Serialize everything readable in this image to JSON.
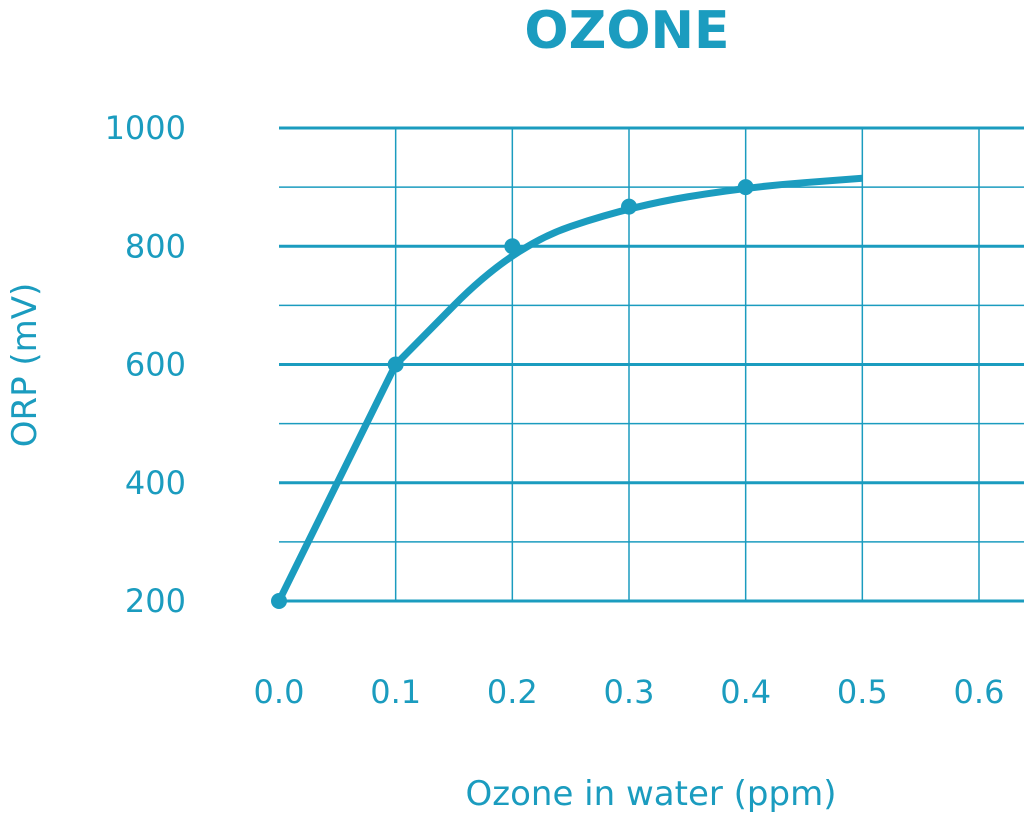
{
  "chart_data": {
    "type": "line",
    "title": "OZONE",
    "xlabel": "Ozone in water (ppm)",
    "ylabel": "ORP (mV)",
    "xlim": [
      0.0,
      0.6
    ],
    "ylim": [
      200,
      1000
    ],
    "x_ticks": [
      "0.0",
      "0.1",
      "0.2",
      "0.3",
      "0.4",
      "0.5",
      "0.6"
    ],
    "y_ticks": [
      "200",
      "400",
      "600",
      "800",
      "1000"
    ],
    "grid": true,
    "legend": "none",
    "series": [
      {
        "x": [
          0.0,
          0.1,
          0.2,
          0.3,
          0.4,
          0.5
        ],
        "y": [
          200,
          600,
          800,
          867,
          900,
          915
        ],
        "markers": [
          true,
          true,
          true,
          true,
          true,
          false
        ]
      }
    ]
  },
  "colors": {
    "accent": "#1b9cbf",
    "background": "#ffffff"
  }
}
